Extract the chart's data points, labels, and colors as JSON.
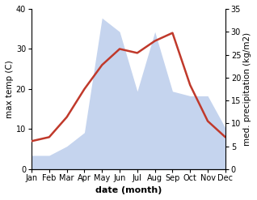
{
  "months": [
    "Jan",
    "Feb",
    "Mar",
    "Apr",
    "May",
    "Jun",
    "Jul",
    "Aug",
    "Sep",
    "Oct",
    "Nov",
    "Dec"
  ],
  "temperature": [
    7,
    8,
    13,
    20,
    26,
    30,
    29,
    32,
    34,
    21,
    12,
    8
  ],
  "precipitation": [
    3,
    3,
    5,
    8,
    33,
    30,
    17,
    30,
    17,
    16,
    16,
    9
  ],
  "temp_color": "#c0392b",
  "precip_fill_color": "#c5d4ee",
  "background_color": "#ffffff",
  "xlabel": "date (month)",
  "ylabel_left": "max temp (C)",
  "ylabel_right": "med. precipitation (kg/m2)",
  "ylim_left": [
    0,
    40
  ],
  "ylim_right": [
    0,
    35
  ],
  "yticks_left": [
    0,
    10,
    20,
    30,
    40
  ],
  "yticks_right": [
    0,
    5,
    10,
    15,
    20,
    25,
    30,
    35
  ],
  "temp_linewidth": 1.8,
  "xlabel_fontsize": 8,
  "ylabel_fontsize": 7.5,
  "tick_fontsize": 7
}
